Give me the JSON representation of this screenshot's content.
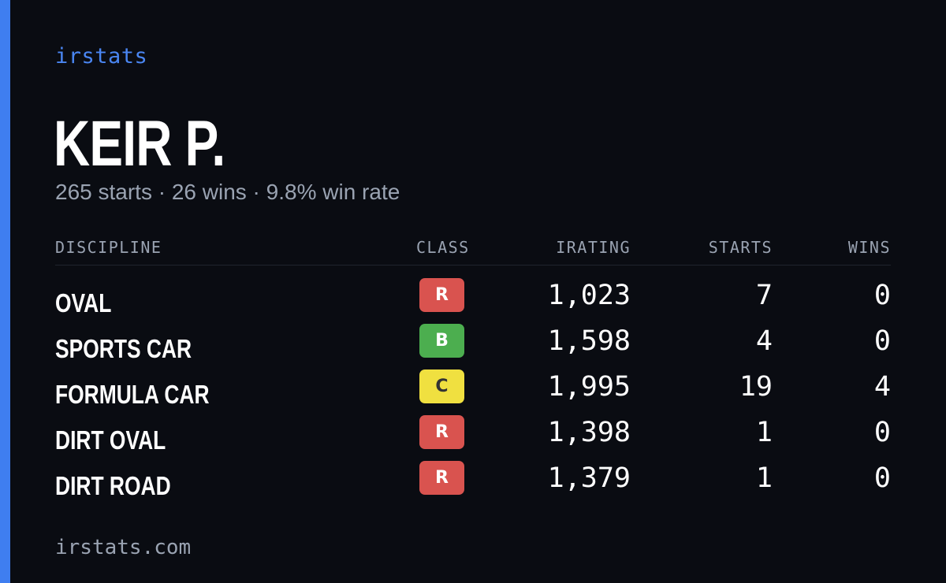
{
  "brand": "irstats",
  "player": {
    "name": "KEIR P.",
    "summary": "265 starts · 26 wins · 9.8% win rate"
  },
  "table": {
    "headers": {
      "discipline": "DISCIPLINE",
      "class": "CLASS",
      "irating": "IRATING",
      "starts": "STARTS",
      "wins": "WINS"
    },
    "rows": [
      {
        "discipline": "OVAL",
        "class": "R",
        "class_color": "#d9534f",
        "class_text_color": "#ffffff",
        "irating": "1,023",
        "starts": "7",
        "wins": "0"
      },
      {
        "discipline": "SPORTS CAR",
        "class": "B",
        "class_color": "#4cae4f",
        "class_text_color": "#ffffff",
        "irating": "1,598",
        "starts": "4",
        "wins": "0"
      },
      {
        "discipline": "FORMULA CAR",
        "class": "C",
        "class_color": "#f0e040",
        "class_text_color": "#333333",
        "irating": "1,995",
        "starts": "19",
        "wins": "4"
      },
      {
        "discipline": "DIRT OVAL",
        "class": "R",
        "class_color": "#d9534f",
        "class_text_color": "#ffffff",
        "irating": "1,398",
        "starts": "1",
        "wins": "0"
      },
      {
        "discipline": "DIRT ROAD",
        "class": "R",
        "class_color": "#d9534f",
        "class_text_color": "#ffffff",
        "irating": "1,379",
        "starts": "1",
        "wins": "0"
      }
    ]
  },
  "footer": "irstats.com",
  "colors": {
    "background": "#0a0c12",
    "accent": "#3f7ef0",
    "muted_text": "#9aa3b2"
  }
}
